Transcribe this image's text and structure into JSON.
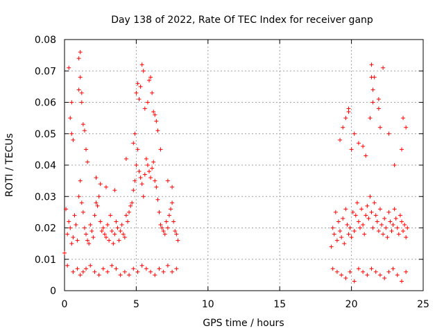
{
  "chart_data": {
    "type": "scatter",
    "title": "Day 138 of 2022, Rate Of TEC Index for receiver ganp",
    "xlabel": "GPS time / hours",
    "ylabel": "ROTI / TECUs",
    "xlim": [
      0,
      25
    ],
    "ylim": [
      0,
      0.08
    ],
    "xticks": [
      "0",
      "5",
      "10",
      "15",
      "20",
      "25"
    ],
    "xtick_values": [
      0,
      5,
      10,
      15,
      20,
      25
    ],
    "yticks": [
      "0",
      "0.01",
      "0.02",
      "0.03",
      "0.04",
      "0.05",
      "0.06",
      "0.07",
      "0.08"
    ],
    "ytick_values": [
      0,
      0.01,
      0.02,
      0.03,
      0.04,
      0.05,
      0.06,
      0.07,
      0.08
    ],
    "grid": true,
    "marker": "+",
    "color": "#ff0000",
    "series": [
      {
        "name": "ROTI",
        "x": [
          0.0,
          0.1,
          0.2,
          0.3,
          0.4,
          0.5,
          0.6,
          0.7,
          0.8,
          0.9,
          1.0,
          1.1,
          1.2,
          1.3,
          1.4,
          1.5,
          1.6,
          1.7,
          1.8,
          1.9,
          2.0,
          2.1,
          2.2,
          2.3,
          2.4,
          2.5,
          2.6,
          2.7,
          2.8,
          2.9,
          3.0,
          3.1,
          3.2,
          3.3,
          3.4,
          3.5,
          3.6,
          3.7,
          3.8,
          3.9,
          4.0,
          4.1,
          4.2,
          4.3,
          4.4,
          4.5,
          4.6,
          4.7,
          4.8,
          4.9,
          5.0,
          5.1,
          5.2,
          5.3,
          5.4,
          5.5,
          5.6,
          5.7,
          5.8,
          5.9,
          6.0,
          6.1,
          6.2,
          6.3,
          6.4,
          6.5,
          6.6,
          6.7,
          6.8,
          6.9,
          7.0,
          7.1,
          7.2,
          7.3,
          7.4,
          7.5,
          7.6,
          7.7,
          7.8,
          7.9,
          0.3,
          0.4,
          0.5,
          0.5,
          0.6,
          1.0,
          1.0,
          1.1,
          1.1,
          1.2,
          1.2,
          1.3,
          1.4,
          1.5,
          1.6,
          2.2,
          2.5,
          2.9,
          3.5,
          4.3,
          4.8,
          4.9,
          5.0,
          5.1,
          5.2,
          5.3,
          5.4,
          5.5,
          5.6,
          5.8,
          5.9,
          6.0,
          6.1,
          6.2,
          6.3,
          6.4,
          6.5,
          6.7,
          7.2,
          7.5,
          0.2,
          0.6,
          0.9,
          1.1,
          1.3,
          1.5,
          1.8,
          2.1,
          2.4,
          2.7,
          3.0,
          3.3,
          3.6,
          3.9,
          4.2,
          4.5,
          4.8,
          5.1,
          5.4,
          5.7,
          6.0,
          6.3,
          6.6,
          6.9,
          7.2,
          7.5,
          7.8,
          18.6,
          18.7,
          18.8,
          18.9,
          19.0,
          19.1,
          19.2,
          19.3,
          19.4,
          19.5,
          19.6,
          19.7,
          19.8,
          19.9,
          20.0,
          20.1,
          20.2,
          20.3,
          20.4,
          20.5,
          20.6,
          20.7,
          20.8,
          20.9,
          21.0,
          21.1,
          21.2,
          21.3,
          21.4,
          21.5,
          21.6,
          21.7,
          21.8,
          21.9,
          22.0,
          22.1,
          22.2,
          22.3,
          22.4,
          22.5,
          22.6,
          22.7,
          22.8,
          22.9,
          23.0,
          23.1,
          23.2,
          23.3,
          23.4,
          23.5,
          23.6,
          23.7,
          23.8,
          23.9,
          19.2,
          19.4,
          19.6,
          19.8,
          19.8,
          20.0,
          20.2,
          20.5,
          20.8,
          21.0,
          21.3,
          21.4,
          21.4,
          21.5,
          21.5,
          21.6,
          21.9,
          21.9,
          22.0,
          22.2,
          22.6,
          23.0,
          23.5,
          23.6,
          23.8,
          18.7,
          19.0,
          19.3,
          19.6,
          19.9,
          20.2,
          20.5,
          20.8,
          21.1,
          21.4,
          21.7,
          22.0,
          22.3,
          22.6,
          22.9,
          23.2,
          23.5,
          23.8
        ],
        "y": [
          0.012,
          0.026,
          0.018,
          0.022,
          0.02,
          0.015,
          0.017,
          0.024,
          0.021,
          0.016,
          0.03,
          0.035,
          0.028,
          0.025,
          0.02,
          0.018,
          0.016,
          0.015,
          0.021,
          0.019,
          0.017,
          0.024,
          0.028,
          0.027,
          0.03,
          0.022,
          0.019,
          0.02,
          0.018,
          0.017,
          0.021,
          0.016,
          0.024,
          0.019,
          0.015,
          0.018,
          0.022,
          0.02,
          0.016,
          0.019,
          0.021,
          0.018,
          0.017,
          0.024,
          0.022,
          0.025,
          0.027,
          0.028,
          0.032,
          0.035,
          0.04,
          0.045,
          0.038,
          0.036,
          0.034,
          0.03,
          0.037,
          0.042,
          0.04,
          0.038,
          0.036,
          0.039,
          0.041,
          0.035,
          0.033,
          0.029,
          0.025,
          0.021,
          0.02,
          0.019,
          0.018,
          0.022,
          0.02,
          0.024,
          0.026,
          0.028,
          0.022,
          0.019,
          0.018,
          0.016,
          0.071,
          0.055,
          0.05,
          0.06,
          0.048,
          0.074,
          0.064,
          0.076,
          0.068,
          0.063,
          0.06,
          0.053,
          0.051,
          0.045,
          0.041,
          0.036,
          0.034,
          0.033,
          0.032,
          0.042,
          0.047,
          0.05,
          0.063,
          0.066,
          0.061,
          0.065,
          0.072,
          0.07,
          0.058,
          0.06,
          0.067,
          0.068,
          0.063,
          0.057,
          0.056,
          0.054,
          0.051,
          0.045,
          0.035,
          0.033,
          0.008,
          0.006,
          0.007,
          0.005,
          0.006,
          0.007,
          0.008,
          0.006,
          0.005,
          0.007,
          0.006,
          0.008,
          0.007,
          0.005,
          0.006,
          0.005,
          0.007,
          0.006,
          0.008,
          0.007,
          0.006,
          0.005,
          0.007,
          0.006,
          0.008,
          0.006,
          0.007,
          0.014,
          0.02,
          0.018,
          0.025,
          0.016,
          0.022,
          0.019,
          0.017,
          0.023,
          0.015,
          0.026,
          0.021,
          0.018,
          0.02,
          0.017,
          0.025,
          0.019,
          0.024,
          0.028,
          0.022,
          0.02,
          0.026,
          0.021,
          0.018,
          0.024,
          0.027,
          0.023,
          0.03,
          0.025,
          0.02,
          0.028,
          0.024,
          0.022,
          0.019,
          0.026,
          0.021,
          0.018,
          0.023,
          0.02,
          0.017,
          0.025,
          0.022,
          0.019,
          0.021,
          0.026,
          0.023,
          0.02,
          0.018,
          0.024,
          0.022,
          0.019,
          0.021,
          0.017,
          0.02,
          0.048,
          0.052,
          0.055,
          0.058,
          0.057,
          0.045,
          0.05,
          0.047,
          0.046,
          0.043,
          0.055,
          0.072,
          0.068,
          0.064,
          0.06,
          0.068,
          0.061,
          0.058,
          0.052,
          0.071,
          0.05,
          0.04,
          0.045,
          0.055,
          0.052,
          0.007,
          0.006,
          0.005,
          0.004,
          0.006,
          0.003,
          0.007,
          0.006,
          0.005,
          0.007,
          0.006,
          0.005,
          0.004,
          0.006,
          0.007,
          0.005,
          0.003,
          0.006
        ]
      }
    ]
  }
}
